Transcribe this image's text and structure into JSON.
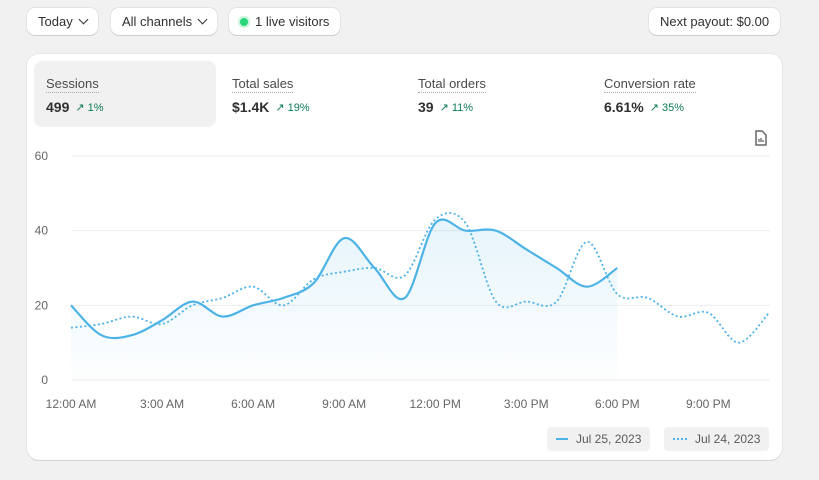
{
  "toolbar": {
    "date": "Today",
    "channels": "All channels",
    "live": "1 live visitors",
    "payout": "Next payout: $0.00"
  },
  "metrics": [
    {
      "label": "Sessions",
      "value": "499",
      "delta": "1%",
      "active": true
    },
    {
      "label": "Total sales",
      "value": "$1.4K",
      "delta": "19%"
    },
    {
      "label": "Total orders",
      "value": "39",
      "delta": "11%"
    },
    {
      "label": "Conversion rate",
      "value": "6.61%",
      "delta": "35%"
    }
  ],
  "colors": {
    "line": "#4db3e6",
    "positive": "#0c7a52",
    "live": "#29d67a"
  },
  "chart_data": {
    "type": "line",
    "ylim": [
      0,
      60
    ],
    "yticks": [
      "0",
      "20",
      "40",
      "60"
    ],
    "xticks": [
      "12:00 AM",
      "3:00 AM",
      "6:00 AM",
      "9:00 AM",
      "12:00 PM",
      "3:00 PM",
      "6:00 PM",
      "9:00 PM"
    ],
    "grid": true,
    "legend_placement": "bottom-right",
    "series": [
      {
        "name": "Jul 25, 2023",
        "style": "solid",
        "x": [
          0,
          1,
          2,
          3,
          4,
          5,
          6,
          7,
          8,
          9,
          10,
          11,
          12,
          13,
          14,
          15,
          16,
          17,
          18
        ],
        "values": [
          20,
          12,
          12,
          16,
          21,
          17,
          20,
          22,
          26,
          38,
          30,
          22,
          42,
          40,
          40,
          35,
          30,
          25,
          30
        ]
      },
      {
        "name": "Jul 24, 2023",
        "style": "dotted",
        "x": [
          0,
          1,
          2,
          3,
          4,
          5,
          6,
          7,
          8,
          9,
          10,
          11,
          12,
          13,
          14,
          15,
          16,
          17,
          18,
          19,
          20,
          21,
          22,
          23
        ],
        "values": [
          14,
          15,
          17,
          15,
          20,
          22,
          25,
          20,
          27,
          29,
          30,
          28,
          43,
          42,
          21,
          21,
          21,
          37,
          23,
          22,
          17,
          18,
          10,
          18
        ]
      }
    ]
  }
}
